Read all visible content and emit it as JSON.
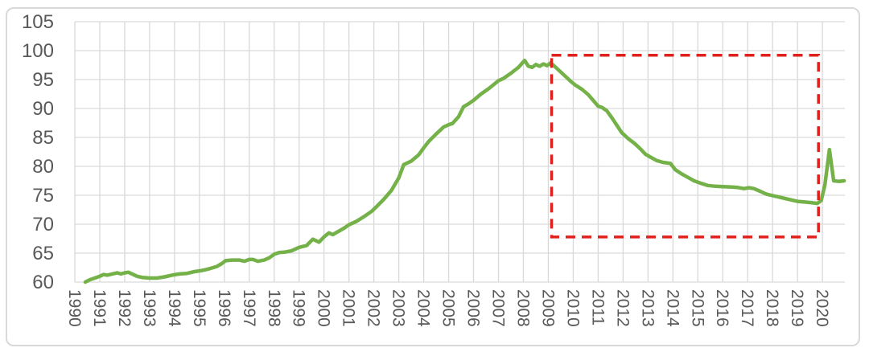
{
  "chart_data": {
    "type": "line",
    "title": "",
    "xlabel": "",
    "ylabel": "",
    "grid": true,
    "legend": "none",
    "xlim": [
      1990,
      2020.9
    ],
    "ylim": [
      60,
      105
    ],
    "x_ticks": [
      1990,
      1991,
      1992,
      1993,
      1994,
      1995,
      1996,
      1997,
      1998,
      1999,
      2000,
      2001,
      2002,
      2003,
      2004,
      2005,
      2006,
      2007,
      2008,
      2009,
      2010,
      2011,
      2012,
      2013,
      2014,
      2015,
      2016,
      2017,
      2018,
      2019,
      2020
    ],
    "y_ticks": [
      60,
      65,
      70,
      75,
      80,
      85,
      90,
      95,
      100,
      105
    ],
    "series": [
      {
        "name": "index-line",
        "color": "#74B149",
        "points": [
          [
            1990.42,
            60.0
          ],
          [
            1990.6,
            60.4
          ],
          [
            1990.8,
            60.7
          ],
          [
            1991.0,
            61.0
          ],
          [
            1991.15,
            61.3
          ],
          [
            1991.3,
            61.2
          ],
          [
            1991.5,
            61.4
          ],
          [
            1991.7,
            61.6
          ],
          [
            1991.85,
            61.4
          ],
          [
            1992.0,
            61.6
          ],
          [
            1992.15,
            61.7
          ],
          [
            1992.3,
            61.4
          ],
          [
            1992.5,
            61.0
          ],
          [
            1992.7,
            60.8
          ],
          [
            1993.0,
            60.7
          ],
          [
            1993.3,
            60.7
          ],
          [
            1993.6,
            60.9
          ],
          [
            1993.9,
            61.2
          ],
          [
            1994.2,
            61.4
          ],
          [
            1994.5,
            61.5
          ],
          [
            1994.8,
            61.8
          ],
          [
            1995.1,
            62.0
          ],
          [
            1995.4,
            62.3
          ],
          [
            1995.7,
            62.7
          ],
          [
            1995.9,
            63.2
          ],
          [
            1996.05,
            63.7
          ],
          [
            1996.3,
            63.8
          ],
          [
            1996.6,
            63.8
          ],
          [
            1996.8,
            63.6
          ],
          [
            1997.0,
            63.9
          ],
          [
            1997.15,
            63.9
          ],
          [
            1997.35,
            63.6
          ],
          [
            1997.6,
            63.8
          ],
          [
            1997.8,
            64.2
          ],
          [
            1998.0,
            64.8
          ],
          [
            1998.2,
            65.1
          ],
          [
            1998.45,
            65.2
          ],
          [
            1998.7,
            65.4
          ],
          [
            1999.0,
            66.0
          ],
          [
            1999.3,
            66.3
          ],
          [
            1999.55,
            67.4
          ],
          [
            1999.8,
            66.9
          ],
          [
            2000.0,
            67.8
          ],
          [
            2000.2,
            68.5
          ],
          [
            2000.35,
            68.2
          ],
          [
            2000.55,
            68.7
          ],
          [
            2000.8,
            69.3
          ],
          [
            2001.0,
            69.9
          ],
          [
            2001.3,
            70.5
          ],
          [
            2001.6,
            71.3
          ],
          [
            2001.9,
            72.2
          ],
          [
            2002.1,
            73.0
          ],
          [
            2002.4,
            74.3
          ],
          [
            2002.7,
            75.8
          ],
          [
            2003.0,
            78.0
          ],
          [
            2003.2,
            80.3
          ],
          [
            2003.5,
            80.9
          ],
          [
            2003.8,
            82.0
          ],
          [
            2004.0,
            83.2
          ],
          [
            2004.2,
            84.3
          ],
          [
            2004.5,
            85.6
          ],
          [
            2004.8,
            86.8
          ],
          [
            2005.0,
            87.2
          ],
          [
            2005.15,
            87.4
          ],
          [
            2005.4,
            88.6
          ],
          [
            2005.6,
            90.3
          ],
          [
            2005.8,
            90.8
          ],
          [
            2006.0,
            91.4
          ],
          [
            2006.3,
            92.5
          ],
          [
            2006.6,
            93.4
          ],
          [
            2006.8,
            94.1
          ],
          [
            2007.0,
            94.8
          ],
          [
            2007.2,
            95.2
          ],
          [
            2007.5,
            96.1
          ],
          [
            2007.8,
            97.1
          ],
          [
            2008.05,
            98.3
          ],
          [
            2008.2,
            97.3
          ],
          [
            2008.35,
            97.1
          ],
          [
            2008.5,
            97.6
          ],
          [
            2008.65,
            97.3
          ],
          [
            2008.8,
            97.7
          ],
          [
            2008.95,
            97.4
          ],
          [
            2009.1,
            97.9
          ],
          [
            2009.3,
            97.1
          ],
          [
            2009.5,
            96.3
          ],
          [
            2009.7,
            95.5
          ],
          [
            2009.9,
            94.7
          ],
          [
            2010.1,
            94.0
          ],
          [
            2010.35,
            93.3
          ],
          [
            2010.6,
            92.4
          ],
          [
            2010.8,
            91.4
          ],
          [
            2011.0,
            90.4
          ],
          [
            2011.15,
            90.2
          ],
          [
            2011.35,
            89.6
          ],
          [
            2011.55,
            88.4
          ],
          [
            2011.75,
            87.1
          ],
          [
            2011.95,
            85.8
          ],
          [
            2012.2,
            84.8
          ],
          [
            2012.45,
            84.0
          ],
          [
            2012.7,
            83.0
          ],
          [
            2012.9,
            82.1
          ],
          [
            2013.1,
            81.6
          ],
          [
            2013.35,
            81.0
          ],
          [
            2013.6,
            80.7
          ],
          [
            2013.9,
            80.5
          ],
          [
            2014.1,
            79.4
          ],
          [
            2014.35,
            78.7
          ],
          [
            2014.6,
            78.1
          ],
          [
            2014.85,
            77.5
          ],
          [
            2015.1,
            77.1
          ],
          [
            2015.4,
            76.7
          ],
          [
            2015.7,
            76.55
          ],
          [
            2016.0,
            76.5
          ],
          [
            2016.3,
            76.45
          ],
          [
            2016.6,
            76.35
          ],
          [
            2016.85,
            76.15
          ],
          [
            2017.05,
            76.3
          ],
          [
            2017.25,
            76.15
          ],
          [
            2017.5,
            75.7
          ],
          [
            2017.75,
            75.2
          ],
          [
            2018.0,
            74.95
          ],
          [
            2018.25,
            74.7
          ],
          [
            2018.5,
            74.45
          ],
          [
            2018.75,
            74.2
          ],
          [
            2019.0,
            73.95
          ],
          [
            2019.25,
            73.85
          ],
          [
            2019.5,
            73.75
          ],
          [
            2019.8,
            73.6
          ],
          [
            2019.95,
            74.1
          ],
          [
            2020.1,
            76.8
          ],
          [
            2020.28,
            82.9
          ],
          [
            2020.45,
            77.5
          ],
          [
            2020.65,
            77.4
          ],
          [
            2020.87,
            77.5
          ]
        ]
      }
    ],
    "annotation_box": {
      "shape": "dashed-rectangle",
      "color": "#E0201C",
      "x0": 2009.13,
      "x1": 2019.84,
      "y0": 67.8,
      "y1": 99.2
    }
  },
  "colors": {
    "background": "#ffffff",
    "frame_border": "#d9d9d9",
    "gridline": "#d9d9d9",
    "tick_label": "#595959",
    "series_green": "#74B149",
    "annotation_red": "#E0201C"
  }
}
